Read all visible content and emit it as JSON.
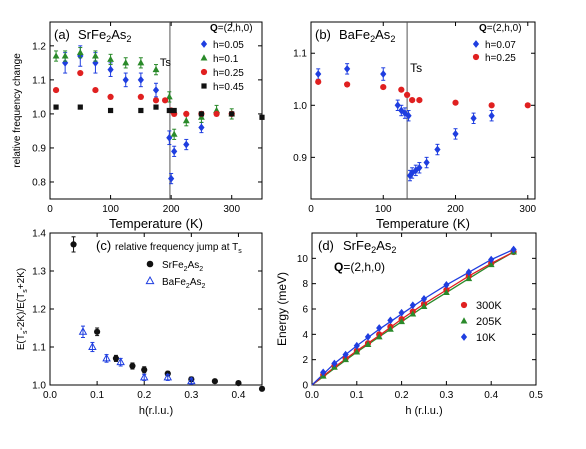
{
  "chart_data": [
    {
      "type": "scatter",
      "panel": "(a)",
      "compound": "SrFe2As2",
      "q_label": "Q=(2,h,0)",
      "ts_label": "Ts",
      "xlabel": "Temperature (K)",
      "ylabel": "relative frequency change",
      "xlim": [
        0,
        350
      ],
      "ylim": [
        0.75,
        1.27
      ],
      "xticks": [
        0,
        100,
        200,
        300
      ],
      "yticks": [
        0.8,
        0.9,
        1.0,
        1.1,
        1.2
      ],
      "vline": 198,
      "series": [
        {
          "name": "h=0.05",
          "color": "#1f3ee0",
          "marker": "diamond",
          "x": [
            25,
            50,
            75,
            100,
            125,
            150,
            175,
            197,
            200,
            205,
            225,
            250
          ],
          "y": [
            1.15,
            1.17,
            1.15,
            1.13,
            1.1,
            1.1,
            1.07,
            0.93,
            0.81,
            0.89,
            0.91,
            0.96
          ],
          "err": [
            0.03,
            0.03,
            0.03,
            0.02,
            0.02,
            0.02,
            0.02,
            0.02,
            0.015,
            0.015,
            0.015,
            0.015
          ]
        },
        {
          "name": "h=0.1",
          "color": "#2a8a2a",
          "marker": "triangle",
          "x": [
            10,
            25,
            50,
            75,
            100,
            125,
            150,
            175,
            197,
            205,
            225,
            250,
            275,
            300
          ],
          "y": [
            1.17,
            1.17,
            1.18,
            1.17,
            1.16,
            1.15,
            1.15,
            1.13,
            1.05,
            0.94,
            0.98,
            0.99,
            1.01,
            1.0
          ],
          "err": [
            0.015,
            0.015,
            0.015,
            0.015,
            0.015,
            0.015,
            0.015,
            0.015,
            0.015,
            0.015,
            0.015,
            0.015,
            0.015,
            0.015
          ]
        },
        {
          "name": "h=0.25",
          "color": "#e02020",
          "marker": "circle",
          "x": [
            10,
            50,
            75,
            100,
            150,
            175,
            190,
            200,
            205,
            225,
            250,
            275,
            300
          ],
          "y": [
            1.07,
            1.12,
            1.07,
            1.05,
            1.05,
            1.04,
            1.04,
            1.01,
            1.0,
            1.0,
            1.0,
            1.0,
            1.0
          ],
          "err": []
        },
        {
          "name": "h=0.45",
          "color": "#111111",
          "marker": "square",
          "x": [
            10,
            50,
            100,
            150,
            175,
            197,
            205,
            250,
            300,
            350
          ],
          "y": [
            1.02,
            1.02,
            1.01,
            1.01,
            1.02,
            1.01,
            1.01,
            1.0,
            1.0,
            0.99
          ],
          "err": []
        }
      ]
    },
    {
      "type": "scatter",
      "panel": "(b)",
      "compound": "BaFe2As2",
      "q_label": "Q=(2,h,0)",
      "ts_label": "Ts",
      "xlabel": "Temperature (K)",
      "ylabel": "",
      "xlim": [
        0,
        310
      ],
      "ylim": [
        0.82,
        1.16
      ],
      "xticks": [
        0,
        100,
        200,
        300
      ],
      "yticks": [
        0.9,
        1.0,
        1.1
      ],
      "vline": 133,
      "series": [
        {
          "name": "h=0.07",
          "color": "#1f3ee0",
          "marker": "diamond",
          "x": [
            10,
            50,
            100,
            120,
            125,
            130,
            135,
            137,
            140,
            145,
            150,
            160,
            175,
            200,
            225,
            250
          ],
          "y": [
            1.06,
            1.07,
            1.06,
            1.0,
            0.99,
            0.985,
            0.98,
            0.865,
            0.87,
            0.875,
            0.88,
            0.89,
            0.915,
            0.945,
            0.975,
            0.98
          ],
          "err": [
            0.01,
            0.01,
            0.012,
            0.01,
            0.01,
            0.01,
            0.01,
            0.01,
            0.01,
            0.01,
            0.01,
            0.01,
            0.01,
            0.01,
            0.01,
            0.01
          ]
        },
        {
          "name": "h=0.25",
          "color": "#e02020",
          "marker": "circle",
          "x": [
            10,
            50,
            100,
            125,
            133,
            140,
            150,
            200,
            250,
            300
          ],
          "y": [
            1.045,
            1.04,
            1.035,
            1.03,
            1.02,
            1.01,
            1.01,
            1.005,
            1.0,
            1.0
          ],
          "err": []
        }
      ]
    },
    {
      "type": "scatter",
      "panel": "(c)",
      "title_main": "relative frequency jump at T",
      "title_sub": "s",
      "ylabel_parts": [
        "E(T",
        "s",
        "-2K)/E(T",
        "s",
        "+2K)"
      ],
      "xlabel": "h(r.l.u.)",
      "xlim": [
        0,
        0.45
      ],
      "ylim": [
        1.0,
        1.4
      ],
      "xticks": [
        0.0,
        0.1,
        0.2,
        0.3,
        0.4
      ],
      "yticks": [
        1.0,
        1.1,
        1.2,
        1.3,
        1.4
      ],
      "series": [
        {
          "name": "SrFe2As2",
          "color": "#111111",
          "marker": "circle",
          "x": [
            0.05,
            0.1,
            0.14,
            0.175,
            0.2,
            0.25,
            0.3,
            0.35,
            0.4,
            0.45
          ],
          "y": [
            1.37,
            1.14,
            1.07,
            1.05,
            1.04,
            1.03,
            1.015,
            1.01,
            1.005,
            0.99
          ],
          "err": [
            0.02,
            0.01,
            0.008,
            0.008,
            0.008,
            0.006,
            0.006,
            0.005,
            0.005,
            0.005
          ]
        },
        {
          "name": "BaFe2As2",
          "color": "#1f3ee0",
          "marker": "open-triangle",
          "x": [
            0.07,
            0.09,
            0.12,
            0.15,
            0.2,
            0.25,
            0.3
          ],
          "y": [
            1.14,
            1.1,
            1.07,
            1.06,
            1.02,
            1.02,
            1.01
          ],
          "err": [
            0.015,
            0.012,
            0.01,
            0.01,
            0.008,
            0.008,
            0.008
          ]
        }
      ]
    },
    {
      "type": "scatter",
      "panel": "(d)",
      "compound": "SrFe2As2",
      "q_label": "Q=(2,h,0)",
      "xlabel": "h (r.l.u.)",
      "ylabel": "Energy (meV)",
      "xlim": [
        0,
        0.5
      ],
      "ylim": [
        0,
        12
      ],
      "xticks": [
        0.0,
        0.1,
        0.2,
        0.3,
        0.4,
        0.5
      ],
      "yticks": [
        0,
        2,
        4,
        6,
        8,
        10
      ],
      "series": [
        {
          "name": "300K",
          "color": "#e02020",
          "marker": "circle",
          "x": [
            0.025,
            0.05,
            0.075,
            0.1,
            0.125,
            0.15,
            0.175,
            0.2,
            0.225,
            0.25,
            0.3,
            0.35,
            0.4,
            0.45
          ],
          "y": [
            0.8,
            1.5,
            2.1,
            2.7,
            3.3,
            4.0,
            4.6,
            5.2,
            5.8,
            6.4,
            7.5,
            8.6,
            9.6,
            10.5
          ]
        },
        {
          "name": "205K",
          "color": "#2a8a2a",
          "marker": "triangle",
          "x": [
            0.025,
            0.05,
            0.075,
            0.1,
            0.125,
            0.15,
            0.175,
            0.2,
            0.225,
            0.25,
            0.3,
            0.35,
            0.4,
            0.45
          ],
          "y": [
            0.7,
            1.4,
            2.0,
            2.6,
            3.2,
            3.8,
            4.4,
            5.0,
            5.6,
            6.2,
            7.3,
            8.4,
            9.5,
            10.5
          ]
        },
        {
          "name": "10K",
          "color": "#1f3ee0",
          "marker": "diamond",
          "x": [
            0.025,
            0.05,
            0.075,
            0.1,
            0.125,
            0.15,
            0.175,
            0.2,
            0.225,
            0.25,
            0.3,
            0.35,
            0.4,
            0.45
          ],
          "y": [
            1.0,
            1.7,
            2.4,
            3.1,
            3.8,
            4.5,
            5.1,
            5.7,
            6.3,
            6.8,
            7.9,
            8.9,
            9.9,
            10.7
          ]
        }
      ],
      "fit_lines": [
        {
          "color": "#2a8a2a",
          "x": [
            0,
            0.05,
            0.1,
            0.15,
            0.2,
            0.25,
            0.3,
            0.35,
            0.4,
            0.45
          ],
          "y": [
            0,
            1.3,
            2.6,
            3.8,
            5.0,
            6.2,
            7.3,
            8.4,
            9.5,
            10.5
          ]
        },
        {
          "color": "#e02020",
          "x": [
            0,
            0.05,
            0.1,
            0.15,
            0.2,
            0.25,
            0.3,
            0.35,
            0.4,
            0.45
          ],
          "y": [
            0,
            1.4,
            2.7,
            3.9,
            5.2,
            6.4,
            7.5,
            8.6,
            9.6,
            10.5
          ]
        },
        {
          "color": "#1f3ee0",
          "x": [
            0,
            0.05,
            0.1,
            0.15,
            0.2,
            0.25,
            0.3,
            0.35,
            0.4,
            0.45
          ],
          "y": [
            0,
            1.7,
            3.1,
            4.4,
            5.6,
            6.8,
            7.9,
            8.9,
            9.9,
            10.7
          ]
        }
      ]
    }
  ]
}
